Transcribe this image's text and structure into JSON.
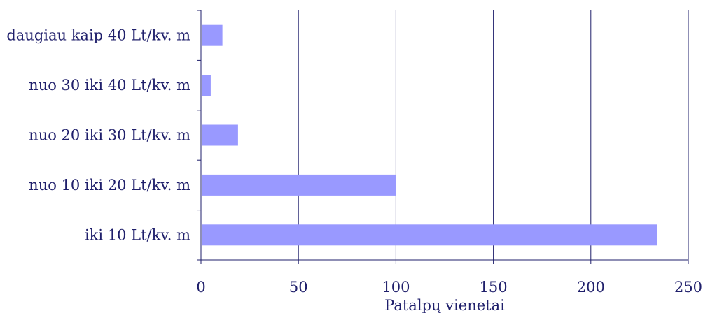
{
  "chart_data": {
    "type": "bar",
    "orientation": "horizontal",
    "categories": [
      "daugiau kaip 40 Lt/kv. m",
      "nuo 30 iki 40 Lt/kv. m",
      "nuo 20 iki 30 Lt/kv. m",
      "nuo 10 iki 20 Lt/kv. m",
      "iki 10 Lt/kv. m"
    ],
    "values": [
      11,
      5,
      19,
      100,
      234
    ],
    "xlabel": "Patalpų vienetai",
    "ylabel": "",
    "xlim": [
      0,
      250
    ],
    "xticks": [
      0,
      50,
      100,
      150,
      200,
      250
    ],
    "grid": "vertical",
    "legend": "none",
    "colors": {
      "bar": "#9999ff",
      "grid": "#1f1f6b",
      "axis": "#1f1f6b",
      "text": "#1f1f6b"
    }
  }
}
